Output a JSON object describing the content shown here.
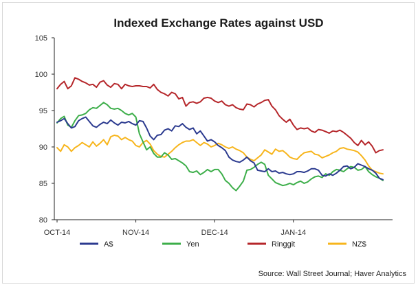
{
  "chart_data": {
    "type": "line",
    "title": "Indexed Exchange Rates against USD",
    "source": "Source: Wall Street Journal; Haver Analytics",
    "ylim": [
      80,
      105
    ],
    "yticks": [
      "80",
      "85",
      "90",
      "95",
      "100",
      "105"
    ],
    "xticks": [
      "OCT-14",
      "NOV-14",
      "DEC-14",
      "JAN-14"
    ],
    "xtick_index": [
      0,
      22,
      44,
      66
    ],
    "n_points": 92,
    "grid": false,
    "legend_position": "bottom",
    "colors": {
      "A$": "#2b3a8f",
      "Yen": "#3cae49",
      "Ringgit": "#b5262a",
      "NZ$": "#f7b51c"
    },
    "series": [
      {
        "name": "A$",
        "values": [
          93.4,
          93.6,
          93.9,
          93.2,
          92.6,
          92.8,
          93.6,
          93.9,
          94.1,
          93.5,
          92.9,
          92.7,
          93.1,
          93.4,
          93.2,
          93.7,
          93.3,
          93.0,
          93.4,
          93.3,
          93.5,
          93.2,
          93.0,
          93.6,
          93.5,
          92.6,
          91.5,
          91.0,
          91.6,
          91.7,
          92.3,
          92.5,
          92.2,
          92.9,
          92.8,
          93.2,
          92.7,
          92.4,
          92.6,
          91.8,
          92.2,
          91.5,
          90.8,
          91.0,
          90.7,
          90.2,
          89.9,
          89.5,
          88.6,
          88.2,
          88.0,
          87.9,
          88.2,
          88.6,
          88.1,
          87.8,
          86.8,
          86.7,
          86.6,
          87.0,
          86.6,
          86.7,
          86.4,
          86.5,
          86.3,
          86.2,
          86.3,
          86.6,
          86.6,
          86.5,
          86.7,
          87.0,
          87.0,
          86.8,
          86.1,
          86.0,
          86.3,
          86.1,
          86.4,
          86.8,
          87.3,
          87.4,
          87.0,
          87.2,
          87.7,
          87.5,
          87.3,
          87.0,
          86.8,
          86.4,
          85.7,
          85.5
        ]
      },
      {
        "name": "Yen",
        "values": [
          93.3,
          93.9,
          94.2,
          93.0,
          92.7,
          93.6,
          94.3,
          94.4,
          94.6,
          95.1,
          95.4,
          95.3,
          95.7,
          96.1,
          95.8,
          95.3,
          95.2,
          95.3,
          95.0,
          94.6,
          94.4,
          94.6,
          94.1,
          91.8,
          90.7,
          89.6,
          90.0,
          89.1,
          88.6,
          88.6,
          89.2,
          88.9,
          88.3,
          88.4,
          88.1,
          87.8,
          87.4,
          86.6,
          86.5,
          86.7,
          86.2,
          86.5,
          86.9,
          86.6,
          86.9,
          86.9,
          86.3,
          85.4,
          85.0,
          84.4,
          84.0,
          84.6,
          85.3,
          86.8,
          86.9,
          87.2,
          87.6,
          87.9,
          87.6,
          86.1,
          85.6,
          85.1,
          84.9,
          84.7,
          84.8,
          85.0,
          84.8,
          85.1,
          85.3,
          85.0,
          85.2,
          85.6,
          85.9,
          86.0,
          85.8,
          86.3,
          86.1,
          86.6,
          86.9,
          86.8,
          86.6,
          87.0,
          87.3,
          87.2,
          86.8,
          86.9,
          87.3,
          86.6,
          86.2,
          85.9,
          85.7,
          85.4
        ]
      },
      {
        "name": "Ringgit",
        "values": [
          98.0,
          98.6,
          99.0,
          98.0,
          98.4,
          99.5,
          99.3,
          99.0,
          98.8,
          98.5,
          98.6,
          98.2,
          98.9,
          99.1,
          98.5,
          98.2,
          98.7,
          98.6,
          98.0,
          98.6,
          98.4,
          98.3,
          98.4,
          98.4,
          98.3,
          98.3,
          98.1,
          98.6,
          97.9,
          97.5,
          97.3,
          97.0,
          97.5,
          97.3,
          96.6,
          96.8,
          95.6,
          96.1,
          96.2,
          96.0,
          96.2,
          96.7,
          96.8,
          96.7,
          96.3,
          96.1,
          96.3,
          95.8,
          95.6,
          95.8,
          95.4,
          95.2,
          95.1,
          95.9,
          95.8,
          95.5,
          95.9,
          96.1,
          96.4,
          96.5,
          95.6,
          95.1,
          94.3,
          93.8,
          93.4,
          93.8,
          93.0,
          92.4,
          92.6,
          92.5,
          92.6,
          92.2,
          92.0,
          92.4,
          92.3,
          92.1,
          91.9,
          92.2,
          92.1,
          92.3,
          92.0,
          91.6,
          91.2,
          90.6,
          90.2,
          90.9,
          90.3,
          90.7,
          90.1,
          89.2,
          89.5,
          89.6
        ]
      },
      {
        "name": "NZ$",
        "values": [
          89.9,
          89.4,
          90.3,
          90.0,
          89.4,
          89.9,
          90.2,
          90.6,
          90.3,
          90.0,
          90.7,
          90.1,
          90.5,
          91.0,
          90.3,
          91.4,
          91.6,
          91.5,
          91.0,
          91.3,
          91.0,
          90.8,
          90.2,
          90.0,
          90.6,
          90.9,
          90.4,
          89.5,
          89.0,
          88.7,
          88.6,
          89.0,
          89.4,
          89.9,
          90.3,
          90.6,
          90.8,
          90.8,
          91.0,
          90.6,
          90.2,
          90.6,
          90.4,
          90.0,
          90.2,
          90.5,
          90.3,
          90.0,
          89.8,
          90.0,
          89.7,
          89.5,
          89.2,
          88.6,
          88.3,
          88.1,
          88.5,
          88.9,
          89.6,
          89.3,
          89.0,
          89.7,
          89.4,
          89.5,
          89.1,
          88.6,
          88.4,
          88.3,
          88.8,
          89.2,
          89.3,
          89.4,
          89.0,
          88.9,
          88.5,
          88.7,
          88.9,
          89.2,
          89.4,
          89.8,
          89.9,
          89.7,
          89.6,
          89.5,
          89.3,
          88.8,
          88.2,
          87.4,
          86.8,
          86.6,
          86.4,
          86.3
        ]
      }
    ]
  }
}
